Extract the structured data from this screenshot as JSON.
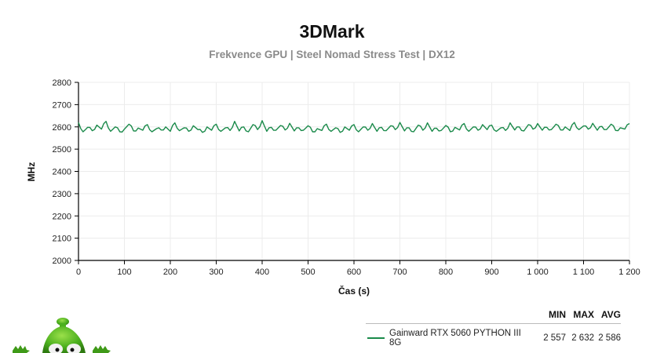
{
  "header": {
    "title": "3DMark",
    "subtitle": "Frekvence GPU | Steel Nomad Stress Test | DX12"
  },
  "legend": {
    "columns": [
      "MIN",
      "MAX",
      "AVG"
    ],
    "rows": [
      {
        "name": "Gainward RTX 5060 PYTHON III 8G",
        "min": "2 557",
        "max": "2 632",
        "avg": "2 586",
        "color": "#1a8a4a"
      }
    ]
  },
  "colors": {
    "series": "#1a8a4a",
    "grid": "#ececec",
    "axis": "#000000"
  },
  "chart_data": {
    "type": "line",
    "title": "3DMark",
    "subtitle": "Frekvence GPU | Steel Nomad Stress Test | DX12",
    "xlabel": "Čas (s)",
    "ylabel": "MHz",
    "xlim": [
      0,
      1200
    ],
    "ylim": [
      2000,
      2800
    ],
    "x_ticks": [
      0,
      100,
      200,
      300,
      400,
      500,
      600,
      700,
      800,
      900,
      1000,
      1100,
      1200
    ],
    "x_tick_labels": [
      "0",
      "100",
      "200",
      "300",
      "400",
      "500",
      "600",
      "700",
      "800",
      "900",
      "1 000",
      "1 100",
      "1 200"
    ],
    "y_ticks": [
      2000,
      2100,
      2200,
      2300,
      2400,
      2500,
      2600,
      2700,
      2800
    ],
    "grid": true,
    "legend_position": "bottom-right",
    "series": [
      {
        "name": "Gainward RTX 5060 PYTHON III 8G",
        "color": "#1a8a4a",
        "min": 2557,
        "max": 2632,
        "avg": 2586,
        "x": [
          0,
          10,
          20,
          30,
          40,
          50,
          60,
          70,
          80,
          90,
          100,
          110,
          120,
          130,
          140,
          150,
          160,
          170,
          180,
          190,
          200,
          210,
          220,
          230,
          240,
          250,
          260,
          270,
          280,
          290,
          300,
          310,
          320,
          330,
          340,
          350,
          360,
          370,
          380,
          390,
          400,
          410,
          420,
          430,
          440,
          450,
          460,
          470,
          480,
          490,
          500,
          510,
          520,
          530,
          540,
          550,
          560,
          570,
          580,
          590,
          600,
          610,
          620,
          630,
          640,
          650,
          660,
          670,
          680,
          690,
          700,
          710,
          720,
          730,
          740,
          750,
          760,
          770,
          780,
          790,
          800,
          810,
          820,
          830,
          840,
          850,
          860,
          870,
          880,
          890,
          900,
          910,
          920,
          930,
          940,
          950,
          960,
          970,
          980,
          990,
          1000,
          1010,
          1020,
          1030,
          1040,
          1050,
          1060,
          1070,
          1080,
          1090,
          1100,
          1110,
          1120,
          1130,
          1140,
          1150,
          1160,
          1170,
          1180,
          1190,
          1200
        ],
        "values": [
          2620,
          2578,
          2598,
          2583,
          2608,
          2590,
          2625,
          2580,
          2600,
          2578,
          2590,
          2612,
          2582,
          2595,
          2585,
          2610,
          2578,
          2592,
          2586,
          2600,
          2580,
          2618,
          2583,
          2596,
          2580,
          2605,
          2588,
          2575,
          2600,
          2585,
          2612,
          2580,
          2596,
          2584,
          2625,
          2582,
          2600,
          2578,
          2610,
          2588,
          2628,
          2580,
          2598,
          2585,
          2606,
          2586,
          2616,
          2582,
          2596,
          2585,
          2605,
          2578,
          2592,
          2584,
          2612,
          2580,
          2596,
          2575,
          2600,
          2585,
          2610,
          2578,
          2600,
          2585,
          2615,
          2580,
          2598,
          2583,
          2605,
          2588,
          2620,
          2582,
          2596,
          2578,
          2608,
          2585,
          2618,
          2580,
          2594,
          2584,
          2606,
          2578,
          2598,
          2586,
          2615,
          2580,
          2600,
          2585,
          2610,
          2588,
          2608,
          2580,
          2596,
          2584,
          2618,
          2586,
          2600,
          2582,
          2610,
          2590,
          2615,
          2585,
          2598,
          2588,
          2612,
          2586,
          2600,
          2584,
          2620,
          2588,
          2604,
          2590,
          2616,
          2585,
          2602,
          2588,
          2612,
          2584,
          2596,
          2590,
          2615
        ]
      }
    ]
  }
}
